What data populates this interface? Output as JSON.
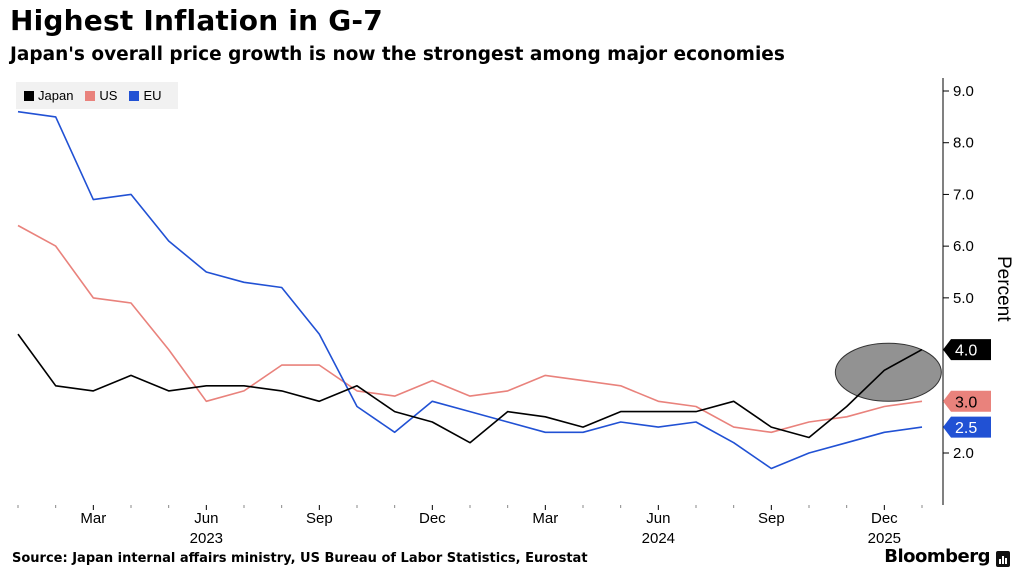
{
  "header": {
    "title": "Highest Inflation in G-7",
    "subtitle": "Japan's overall price growth is now the strongest among major economies"
  },
  "footer": {
    "source": "Source: Japan internal affairs ministry, US Bureau of Labor Statistics, Eurostat",
    "brand": "Bloomberg"
  },
  "chart_data": {
    "type": "line",
    "title": "Highest Inflation in G-7",
    "subtitle": "Japan's overall price growth is now the strongest among major economies",
    "ylabel": "Percent",
    "y_axis_side": "right",
    "ylim": [
      1.0,
      9.2
    ],
    "yticks": [
      2.0,
      3.0,
      4.0,
      5.0,
      6.0,
      7.0,
      8.0,
      9.0
    ],
    "ytick_labels": [
      "2.0",
      "3.0",
      "4.0",
      "5.0",
      "6.0",
      "7.0",
      "8.0",
      "9.0"
    ],
    "x": [
      "2023-01",
      "2023-02",
      "2023-03",
      "2023-04",
      "2023-05",
      "2023-06",
      "2023-07",
      "2023-08",
      "2023-09",
      "2023-10",
      "2023-11",
      "2023-12",
      "2024-01",
      "2024-02",
      "2024-03",
      "2024-04",
      "2024-05",
      "2024-06",
      "2024-07",
      "2024-08",
      "2024-09",
      "2024-10",
      "2024-11",
      "2024-12",
      "2025-01"
    ],
    "xtick_labels": [
      {
        "x": "2023-03",
        "label": "Mar"
      },
      {
        "x": "2023-06",
        "label": "Jun",
        "year": "2023"
      },
      {
        "x": "2023-09",
        "label": "Sep"
      },
      {
        "x": "2023-12",
        "label": "Dec"
      },
      {
        "x": "2024-03",
        "label": "Mar"
      },
      {
        "x": "2024-06",
        "label": "Jun",
        "year": "2024"
      },
      {
        "x": "2024-09",
        "label": "Sep"
      },
      {
        "x": "2024-12",
        "label": "Dec",
        "year": "2025"
      }
    ],
    "legend_position": "top-left",
    "grid": false,
    "series": [
      {
        "name": "Japan",
        "color": "#000000",
        "values": [
          4.3,
          3.3,
          3.2,
          3.5,
          3.2,
          3.3,
          3.3,
          3.2,
          3.0,
          3.3,
          2.8,
          2.6,
          2.2,
          2.8,
          2.7,
          2.5,
          2.8,
          2.8,
          2.8,
          3.0,
          2.5,
          2.3,
          2.9,
          3.6,
          4.0
        ]
      },
      {
        "name": "US",
        "color": "#e9827c",
        "values": [
          6.4,
          6.0,
          5.0,
          4.9,
          4.0,
          3.0,
          3.2,
          3.7,
          3.7,
          3.2,
          3.1,
          3.4,
          3.1,
          3.2,
          3.5,
          3.4,
          3.3,
          3.0,
          2.9,
          2.5,
          2.4,
          2.6,
          2.7,
          2.9,
          3.0
        ]
      },
      {
        "name": "EU",
        "color": "#2151d4",
        "values": [
          8.6,
          8.5,
          6.9,
          7.0,
          6.1,
          5.5,
          5.3,
          5.2,
          4.3,
          2.9,
          2.4,
          3.0,
          2.8,
          2.6,
          2.4,
          2.4,
          2.6,
          2.5,
          2.6,
          2.2,
          1.7,
          2.0,
          2.2,
          2.4,
          2.5
        ]
      }
    ],
    "end_labels": [
      {
        "series": "Japan",
        "label": "4.0",
        "bg": "#000000",
        "fg": "#ffffff"
      },
      {
        "series": "US",
        "label": "3.0",
        "bg": "#e9827c",
        "fg": "#000000"
      },
      {
        "series": "EU",
        "label": "2.5",
        "bg": "#2151d4",
        "fg": "#ffffff"
      }
    ],
    "annotation": {
      "type": "ellipse-highlight",
      "x": "2024-12",
      "color": "#777777"
    }
  }
}
